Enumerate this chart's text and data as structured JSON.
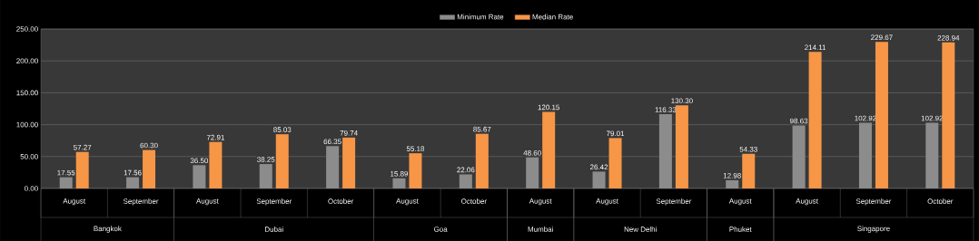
{
  "chart_data": {
    "type": "bar",
    "categories": [
      "August",
      "September",
      "August",
      "September",
      "October",
      "August",
      "October",
      "August",
      "August",
      "September",
      "August",
      "August",
      "September",
      "October"
    ],
    "annotations": [
      "Bangkok",
      "Dubai",
      "Goa",
      "Mumbai",
      "New Delhi",
      "Phuket",
      "Singapore"
    ],
    "series": [
      {
        "name": "Minimum Rate",
        "color": "#8c8c8c",
        "values": [
          17.55,
          17.56,
          36.5,
          38.25,
          66.35,
          15.89,
          22.06,
          48.6,
          26.42,
          116.33,
          12.98,
          98.63,
          102.92,
          102.92
        ],
        "value_labels": [
          "17.55",
          "17.56",
          "36.50",
          "38.25",
          "66.35",
          "15.89",
          "22.06",
          "48.60",
          "26.42",
          "116.33",
          "12.98",
          "98.63",
          "102.92",
          "102.92"
        ]
      },
      {
        "name": "Median Rate",
        "color": "#f79646",
        "values": [
          57.27,
          60.3,
          72.91,
          85.03,
          79.74,
          55.18,
          85.67,
          120.15,
          79.01,
          130.3,
          54.33,
          214.11,
          229.67,
          228.94
        ],
        "value_labels": [
          "57.27",
          "60.30",
          "72.91",
          "85.03",
          "79.74",
          "55.18",
          "85.67",
          "120.15",
          "79.01",
          "130.30",
          "54.33",
          "214.11",
          "229.67",
          "228.94"
        ]
      }
    ],
    "ylim": [
      0,
      250
    ],
    "yticks": [
      {
        "value": 0,
        "label": "0.00"
      },
      {
        "value": 50,
        "label": "50.00"
      },
      {
        "value": 100,
        "label": "100.00"
      },
      {
        "value": 150,
        "label": "150.00"
      },
      {
        "value": 200,
        "label": "200.00"
      },
      {
        "value": 250,
        "label": "250.00"
      }
    ],
    "grid": "y",
    "legend": "top"
  }
}
